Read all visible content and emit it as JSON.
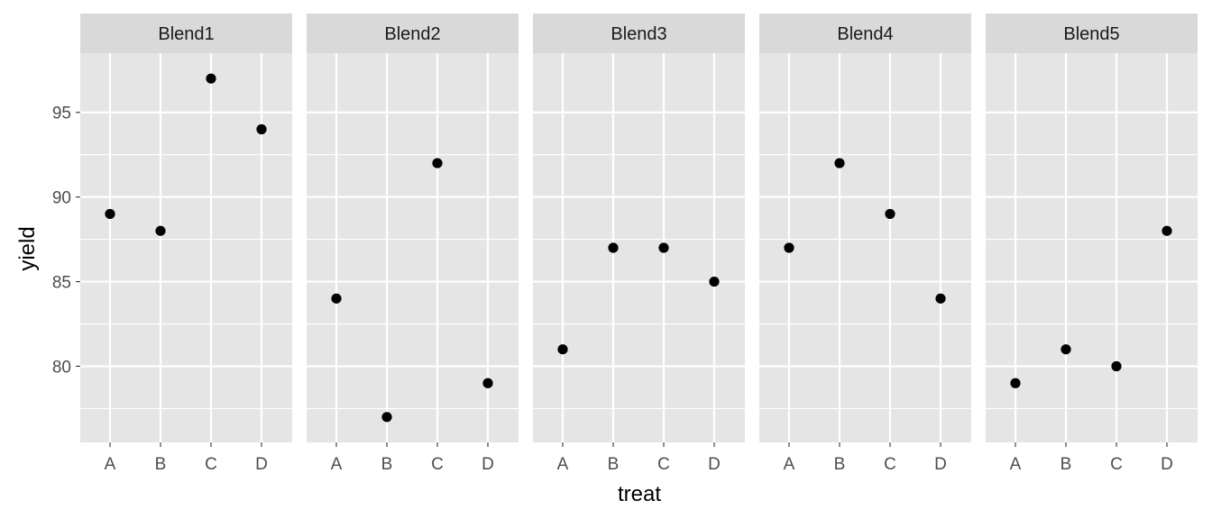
{
  "chart_data": {
    "type": "scatter",
    "layout": "faceted",
    "xlabel": "treat",
    "ylabel": "yield",
    "categories": [
      "A",
      "B",
      "C",
      "D"
    ],
    "y_ticks": [
      80,
      85,
      90,
      95
    ],
    "ylim": [
      75.5,
      98.5
    ],
    "grid": true,
    "point_color": "#000000",
    "panel_background": "#e5e5e5",
    "strip_background": "#d9d9d9",
    "grid_color": "#ffffff",
    "facets": [
      {
        "name": "Blend1",
        "values": [
          89,
          88,
          97,
          94
        ]
      },
      {
        "name": "Blend2",
        "values": [
          84,
          77,
          92,
          79
        ]
      },
      {
        "name": "Blend3",
        "values": [
          81,
          87,
          87,
          85
        ]
      },
      {
        "name": "Blend4",
        "values": [
          87,
          92,
          89,
          84
        ]
      },
      {
        "name": "Blend5",
        "values": [
          79,
          81,
          80,
          88
        ]
      }
    ]
  }
}
